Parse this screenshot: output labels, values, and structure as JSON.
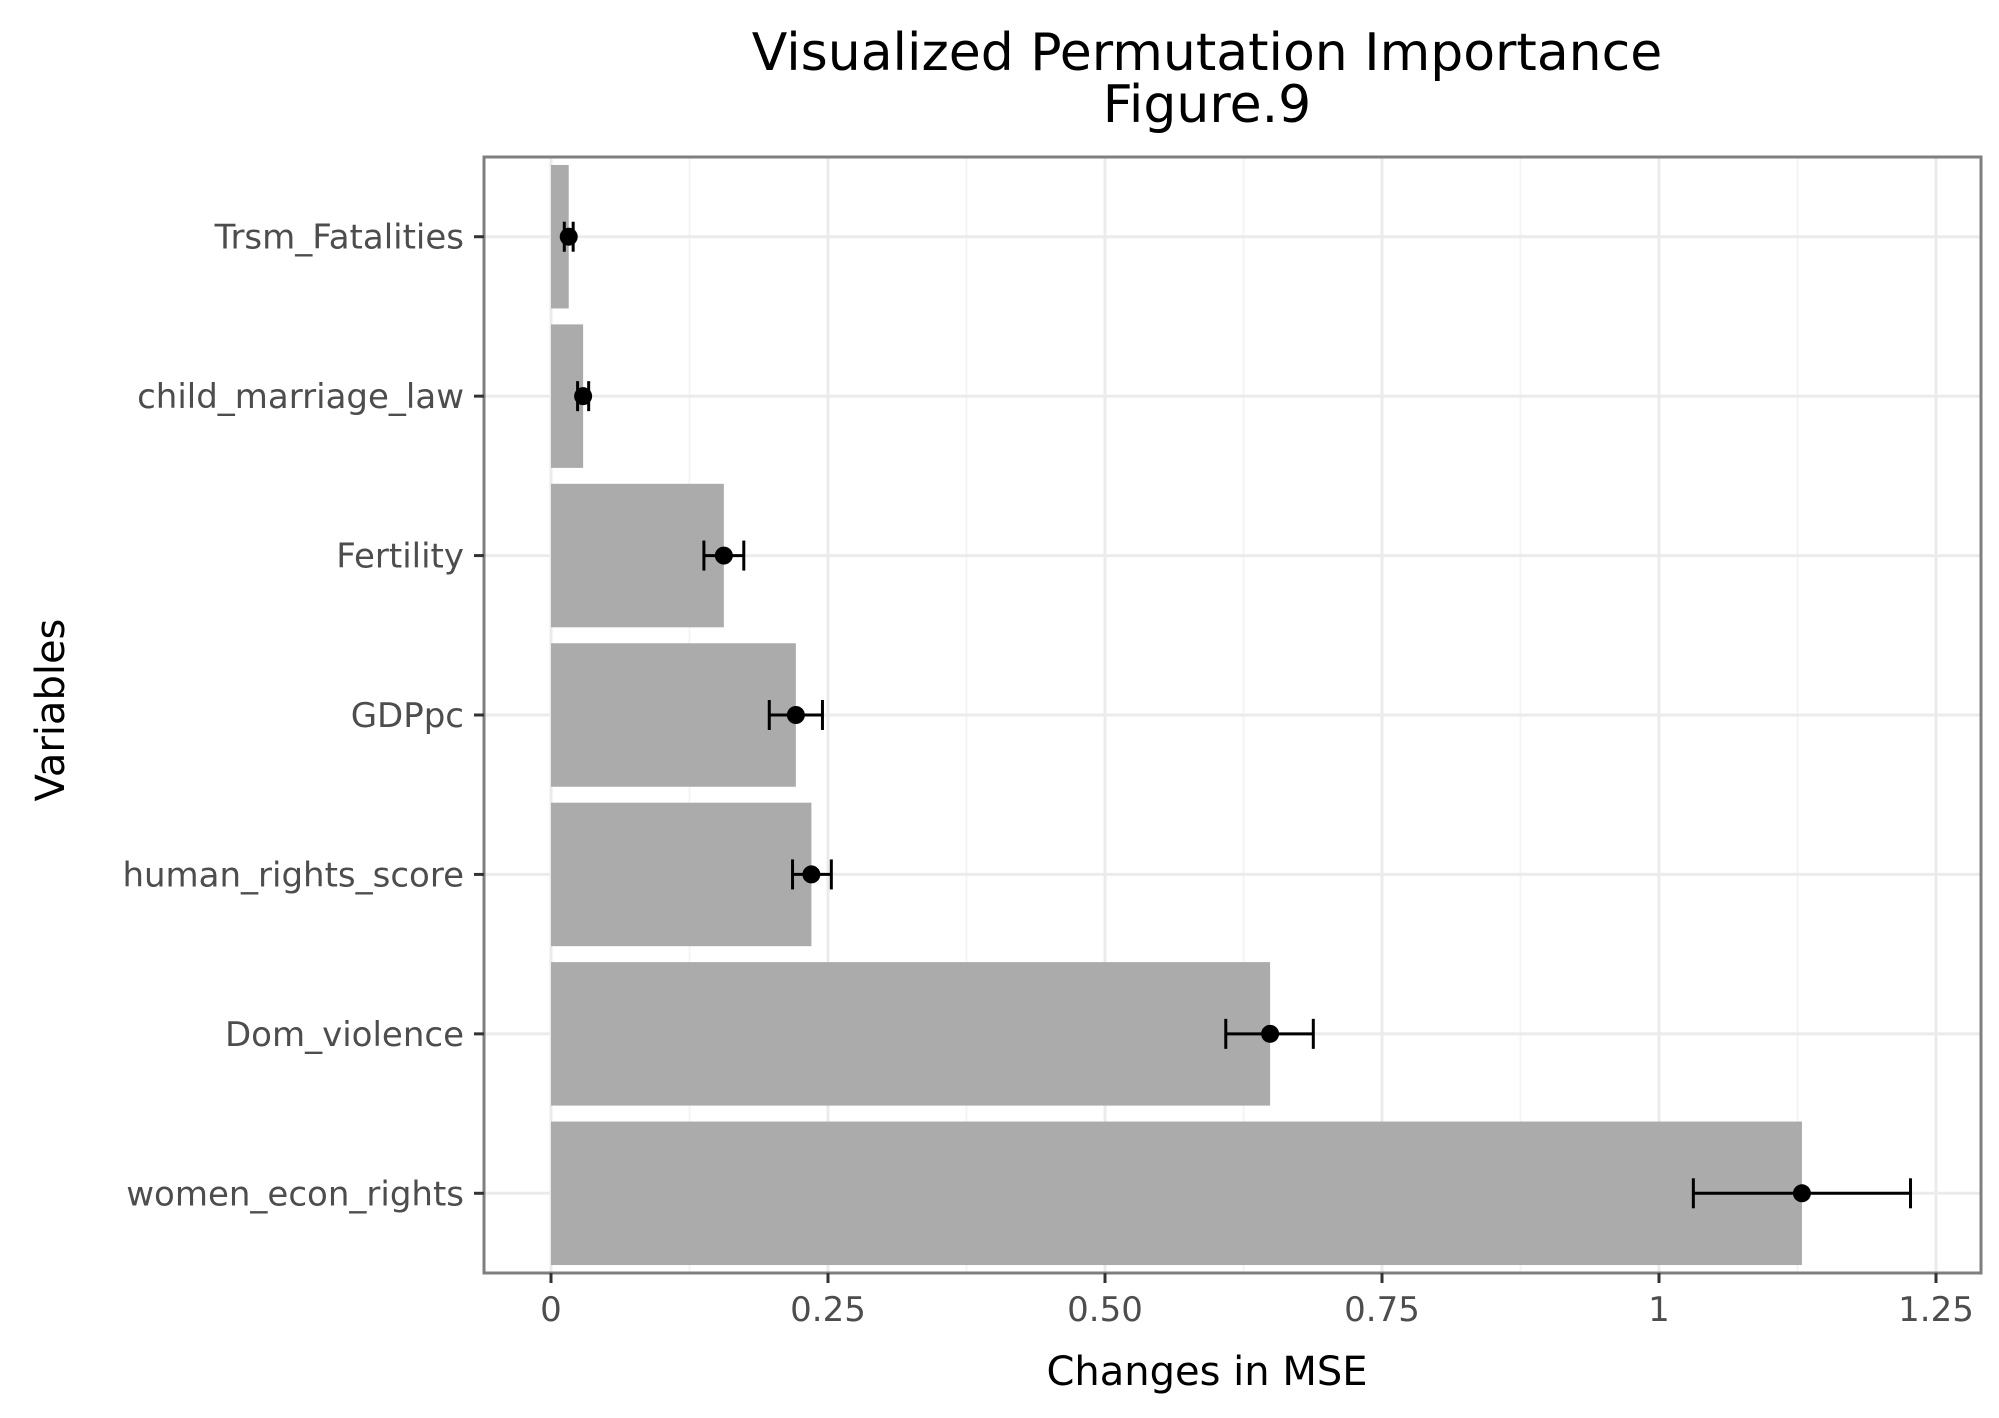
{
  "chart_data": {
    "type": "bar",
    "orientation": "horizontal",
    "title": "Visualized Permutation Importance",
    "subtitle": "Figure.9",
    "xlabel": "Changes in MSE",
    "ylabel": "Variables",
    "xlim": [
      -0.06,
      1.3
    ],
    "x_ticks": [
      0,
      0.25,
      0.5,
      0.75,
      1,
      1.25
    ],
    "x_tick_labels": [
      "0",
      "0.25",
      "0.50",
      "0.75",
      "1",
      "1.25"
    ],
    "grid": true,
    "categories": [
      "Trsm_Fatalities",
      "child_marriage_law",
      "Fertility",
      "GDPpc",
      "human_rights_score",
      "Dom_violence",
      "women_econ_rights"
    ],
    "values": [
      0.016,
      0.029,
      0.156,
      0.221,
      0.235,
      0.649,
      1.129
    ],
    "error_low": [
      0.012,
      0.024,
      0.138,
      0.197,
      0.218,
      0.609,
      1.031
    ],
    "error_high": [
      0.02,
      0.034,
      0.174,
      0.245,
      0.253,
      0.688,
      1.227
    ],
    "colors": {
      "bar": "#ababab",
      "point": "#000000",
      "panel_border": "#7f7f7f",
      "grid_major": "#ebebeb",
      "grid_minor": "#f4f4f4"
    }
  }
}
